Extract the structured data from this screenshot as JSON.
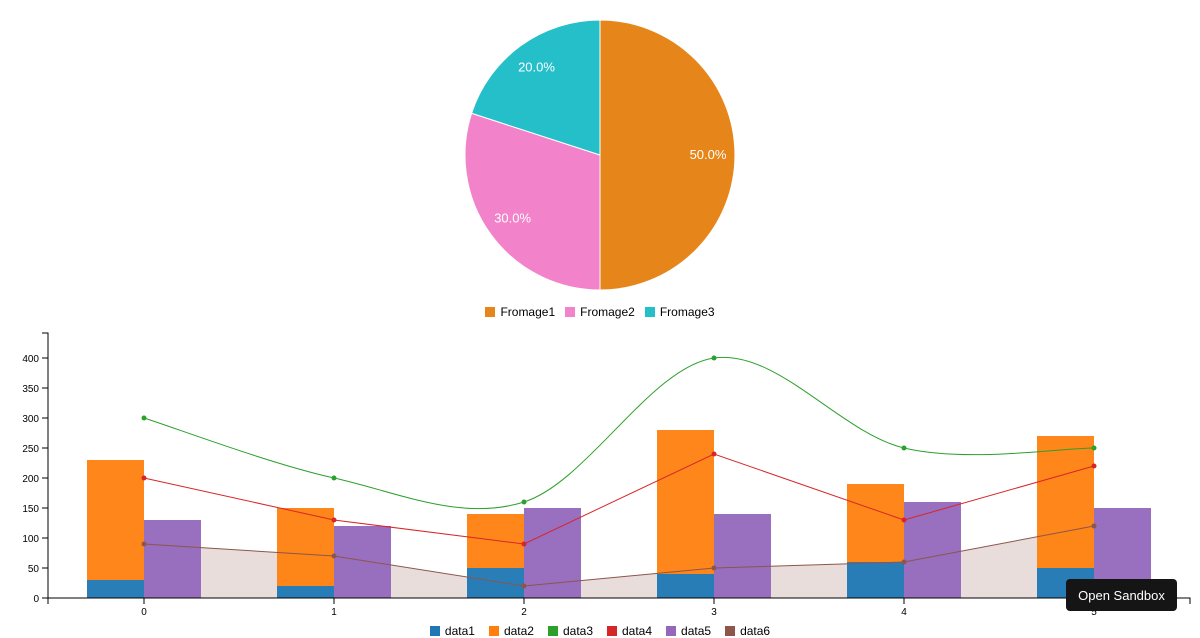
{
  "chart_data": [
    {
      "type": "pie",
      "categories": [
        "Fromage1",
        "Fromage2",
        "Fromage3"
      ],
      "values": [
        50,
        30,
        20
      ],
      "labels": [
        "50.0%",
        "30.0%",
        "20.0%"
      ],
      "colors": [
        "#e6861a",
        "#f282c9",
        "#24bfc9"
      ],
      "legend": "bottom"
    },
    {
      "type": "bar",
      "categories": [
        "0",
        "1",
        "2",
        "3",
        "4",
        "5"
      ],
      "yticks": [
        "0",
        "50",
        "100",
        "150",
        "200",
        "250",
        "300",
        "350",
        "400"
      ],
      "ylim": [
        0,
        440
      ],
      "grid": false,
      "legend": "bottom",
      "series": [
        {
          "name": "data1",
          "kind": "bar",
          "stack": "a",
          "color": "#1f77b4",
          "values": [
            30,
            20,
            50,
            40,
            60,
            50
          ]
        },
        {
          "name": "data2",
          "kind": "bar",
          "stack": "a",
          "color": "#ff7f0e",
          "values": [
            200,
            130,
            90,
            240,
            130,
            220
          ]
        },
        {
          "name": "data3",
          "kind": "spline",
          "color": "#2ca02c",
          "values": [
            300,
            200,
            160,
            400,
            250,
            250
          ]
        },
        {
          "name": "data4",
          "kind": "line",
          "color": "#d62728",
          "values": [
            200,
            130,
            90,
            240,
            130,
            220
          ]
        },
        {
          "name": "data5",
          "kind": "bar",
          "stack": "b",
          "color": "#9467bd",
          "values": [
            130,
            120,
            150,
            140,
            160,
            150
          ]
        },
        {
          "name": "data6",
          "kind": "area",
          "color": "#8c564b",
          "values": [
            90,
            70,
            20,
            50,
            60,
            120
          ]
        }
      ]
    }
  ],
  "sandbox_button": "Open Sandbox"
}
